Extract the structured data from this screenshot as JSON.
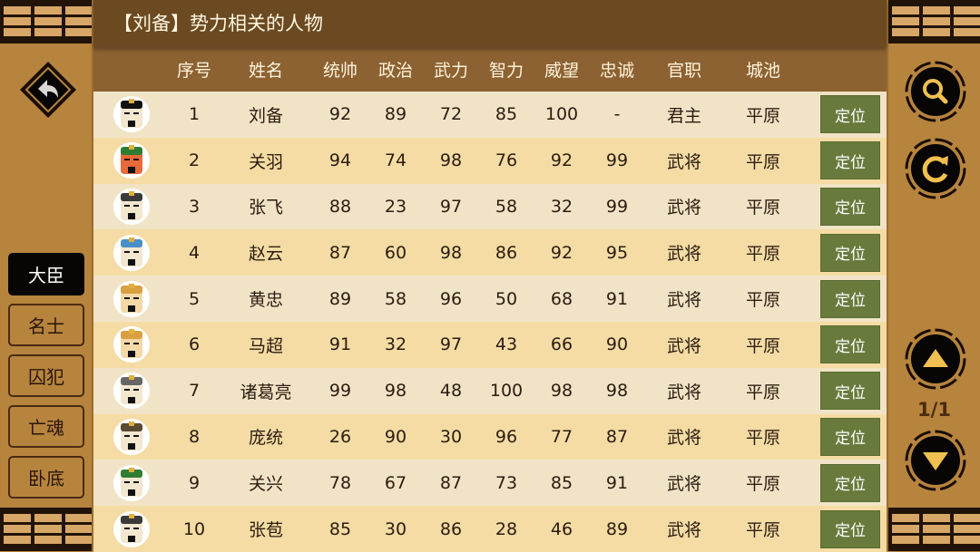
{
  "title": "【刘备】势力相关的人物",
  "columns": [
    "序号",
    "姓名",
    "统帅",
    "政治",
    "武力",
    "智力",
    "威望",
    "忠诚",
    "官职",
    "城池"
  ],
  "locate_label": "定位",
  "rows": [
    {
      "no": "1",
      "name": "刘备",
      "tong": "92",
      "zheng": "89",
      "wu": "72",
      "zhi": "85",
      "wei": "100",
      "zhong": "-",
      "guan": "君主",
      "city": "平原",
      "hat": "#111111",
      "face": "#f3e7d0"
    },
    {
      "no": "2",
      "name": "关羽",
      "tong": "94",
      "zheng": "74",
      "wu": "98",
      "zhi": "76",
      "wei": "92",
      "zhong": "99",
      "guan": "武将",
      "city": "平原",
      "hat": "#2e7d32",
      "face": "#e8693a"
    },
    {
      "no": "3",
      "name": "张飞",
      "tong": "88",
      "zheng": "23",
      "wu": "97",
      "zhi": "58",
      "wei": "32",
      "zhong": "99",
      "guan": "武将",
      "city": "平原",
      "hat": "#3a3a3a",
      "face": "#f3e7d0"
    },
    {
      "no": "4",
      "name": "赵云",
      "tong": "87",
      "zheng": "60",
      "wu": "98",
      "zhi": "86",
      "wei": "92",
      "zhong": "95",
      "guan": "武将",
      "city": "平原",
      "hat": "#4a90c8",
      "face": "#f3e7d0"
    },
    {
      "no": "5",
      "name": "黄忠",
      "tong": "89",
      "zheng": "58",
      "wu": "96",
      "zhi": "50",
      "wei": "68",
      "zhong": "91",
      "guan": "武将",
      "city": "平原",
      "hat": "#d9a040",
      "face": "#f3d9a8"
    },
    {
      "no": "6",
      "name": "马超",
      "tong": "91",
      "zheng": "32",
      "wu": "97",
      "zhi": "43",
      "wei": "66",
      "zhong": "90",
      "guan": "武将",
      "city": "平原",
      "hat": "#d9a040",
      "face": "#f3d9a8"
    },
    {
      "no": "7",
      "name": "诸葛亮",
      "tong": "99",
      "zheng": "98",
      "wu": "48",
      "zhi": "100",
      "wei": "98",
      "zhong": "98",
      "guan": "武将",
      "city": "平原",
      "hat": "#666666",
      "face": "#f3e7d0"
    },
    {
      "no": "8",
      "name": "庞统",
      "tong": "26",
      "zheng": "90",
      "wu": "30",
      "zhi": "96",
      "wei": "77",
      "zhong": "87",
      "guan": "武将",
      "city": "平原",
      "hat": "#5a4a30",
      "face": "#f3e7d0"
    },
    {
      "no": "9",
      "name": "关兴",
      "tong": "78",
      "zheng": "67",
      "wu": "87",
      "zhi": "73",
      "wei": "85",
      "zhong": "91",
      "guan": "武将",
      "city": "平原",
      "hat": "#2e7d32",
      "face": "#f3e7d0"
    },
    {
      "no": "10",
      "name": "张苞",
      "tong": "85",
      "zheng": "30",
      "wu": "86",
      "zhi": "28",
      "wei": "46",
      "zhong": "89",
      "guan": "武将",
      "city": "平原",
      "hat": "#3a3a3a",
      "face": "#f3e7d0"
    }
  ],
  "tabs": [
    "大臣",
    "名士",
    "囚犯",
    "亡魂",
    "卧底"
  ],
  "active_tab": "大臣",
  "pagination": "1/1",
  "icons": {
    "back": "back-arrow-icon",
    "search": "search-icon",
    "refresh": "refresh-icon",
    "up": "triangle-up-icon",
    "down": "triangle-down-icon"
  },
  "colors": {
    "accent": "#687b3c",
    "title_bar": "#6b4a22",
    "header": "#8c6232",
    "side": "#b7843e",
    "icon_gold": "#f0c050"
  }
}
